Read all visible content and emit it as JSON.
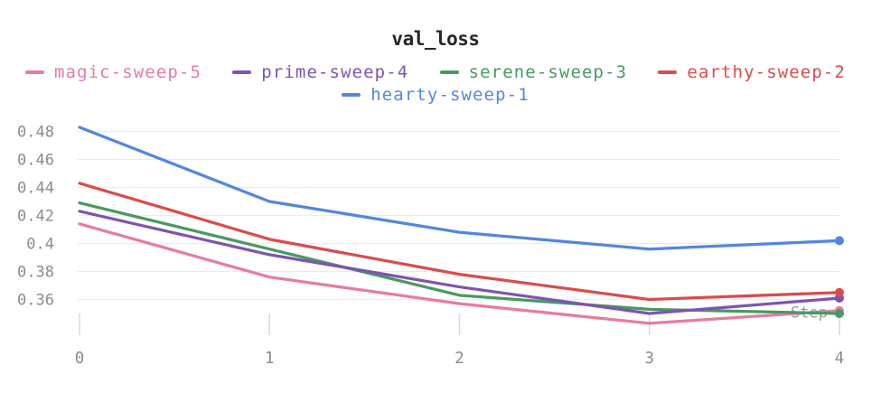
{
  "panel": {
    "title": "val_loss"
  },
  "axes": {
    "x_title": "Step",
    "x_tick_labels": [
      "0",
      "1",
      "2",
      "3",
      "4"
    ],
    "y_tick_labels": [
      "0.48",
      "0.46",
      "0.44",
      "0.42",
      "0.4",
      "0.38",
      "0.36"
    ]
  },
  "chart_data": {
    "type": "line",
    "title": "val_loss",
    "xlabel": "Step",
    "ylabel": "",
    "x": [
      0,
      1,
      2,
      3,
      4
    ],
    "x_tick_labels": [
      "0",
      "1",
      "2",
      "3",
      "4"
    ],
    "y_tick_labels": [
      "0.48",
      "0.46",
      "0.44",
      "0.42",
      "0.4",
      "0.38",
      "0.36"
    ],
    "ylim": [
      0.338,
      0.49
    ],
    "grid": "horizontal",
    "legend_position": "top",
    "marker": "dot-on-last-point-only",
    "series": [
      {
        "name": "magic-sweep-5",
        "color": "#E87B9F",
        "values": [
          0.414,
          0.376,
          0.357,
          0.343,
          0.352
        ]
      },
      {
        "name": "prime-sweep-4",
        "color": "#7D54B2",
        "values": [
          0.423,
          0.392,
          0.369,
          0.35,
          0.361
        ]
      },
      {
        "name": "serene-sweep-3",
        "color": "#479A5F",
        "values": [
          0.429,
          0.396,
          0.363,
          0.353,
          0.35
        ]
      },
      {
        "name": "earthy-sweep-2",
        "color": "#DA4C4C",
        "values": [
          0.443,
          0.403,
          0.378,
          0.36,
          0.365
        ]
      },
      {
        "name": "hearty-sweep-1",
        "color": "#5387DD",
        "values": [
          0.483,
          0.43,
          0.408,
          0.396,
          0.402
        ]
      }
    ],
    "draw_order": [
      0,
      2,
      1,
      3,
      4
    ],
    "legend_rows": [
      [
        0,
        1,
        2,
        3
      ],
      [
        4
      ]
    ]
  },
  "colors": {
    "background": "#ffffff",
    "grid_line": "#ececef",
    "tick_mark": "#d9d9de",
    "tick_label": "#8a8a92",
    "axis_title": "#9a9aa0",
    "chart_title": "#26262b"
  }
}
